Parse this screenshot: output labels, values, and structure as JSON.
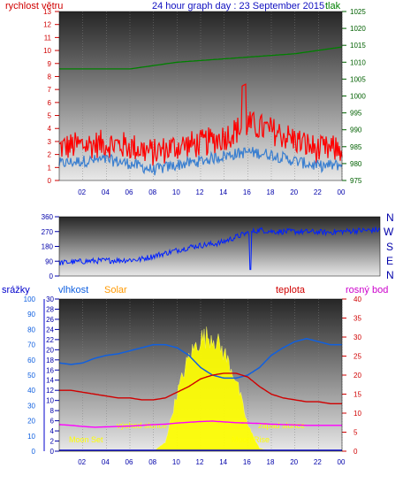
{
  "chart_data": [
    {
      "type": "line",
      "title": "24 hour graph day : 23 September 2015",
      "left_axis_label": "rychlost větru",
      "right_axis_label": "tlak",
      "x_tick_labels": [
        "02",
        "04",
        "06",
        "08",
        "10",
        "12",
        "14",
        "16",
        "18",
        "20",
        "22",
        "00"
      ],
      "left_ticks": [
        0,
        1,
        2,
        3,
        4,
        5,
        6,
        7,
        8,
        9,
        10,
        11,
        12,
        13
      ],
      "right_ticks": [
        975,
        980,
        985,
        990,
        995,
        1000,
        1005,
        1010,
        1015,
        1020,
        1025
      ],
      "ylim_left": [
        0,
        13
      ],
      "ylim_right": [
        975,
        1025
      ],
      "x": [
        0,
        2,
        4,
        6,
        8,
        10,
        12,
        14,
        16,
        18,
        20,
        22,
        24
      ],
      "series": [
        {
          "values_pressure": [
            1008,
            1008,
            1008,
            1008,
            1009,
            1010,
            1010.5,
            1011,
            1011.5,
            1012,
            1012.5,
            1013.5,
            1014.5
          ]
        },
        {
          "values_gust": [
            2.2,
            2.4,
            2.5,
            2.3,
            1.8,
            2.3,
            2.5,
            3.0,
            4.0,
            3.5,
            2.8,
            2.0,
            2.1
          ]
        },
        {
          "values_avg": [
            1.3,
            1.5,
            1.6,
            1.3,
            0.8,
            1.2,
            1.5,
            1.9,
            2.2,
            2.0,
            1.5,
            1.1,
            1.2
          ]
        }
      ]
    },
    {
      "type": "line",
      "left_ticks": [
        0,
        90,
        180,
        270,
        360
      ],
      "compass": [
        "N",
        "W",
        "S",
        "E",
        "N"
      ],
      "ylim": [
        0,
        360
      ],
      "x": [
        0,
        2,
        4,
        6,
        8,
        10,
        12,
        14,
        15,
        16,
        18,
        20,
        22,
        24
      ],
      "series": [
        {
          "values": [
            80,
            90,
            95,
            100,
            140,
            180,
            200,
            260,
            280,
            270,
            270,
            265,
            275,
            280
          ]
        }
      ]
    },
    {
      "type": "area",
      "legend": [
        "srážky",
        "vlhkost",
        "Solar",
        "teplota",
        "rosný bod"
      ],
      "left_ticks": [
        0,
        10,
        20,
        30,
        40,
        50,
        60,
        70,
        80,
        90,
        100
      ],
      "left2_ticks": [
        0,
        2,
        4,
        6,
        8,
        10,
        12,
        14,
        16,
        18,
        20,
        22,
        24,
        26,
        28,
        30
      ],
      "right_ticks": [
        0,
        5,
        10,
        15,
        20,
        25,
        30,
        35,
        40
      ],
      "ylim_humidity": [
        0,
        100
      ],
      "ylim_temp": [
        0,
        40
      ],
      "x_tick_labels": [
        "02",
        "04",
        "06",
        "08",
        "10",
        "12",
        "14",
        "16",
        "18",
        "20",
        "22",
        "00"
      ],
      "annotations": {
        "moon_set": "Moon Set",
        "sunrise": "východ slunce",
        "moon_rise": "Moon Rise",
        "sunset": "západ slunce"
      },
      "x": [
        0,
        1,
        2,
        3,
        4,
        5,
        6,
        7,
        8,
        9,
        10,
        11,
        12,
        13,
        14,
        15,
        16,
        17,
        18,
        19,
        20,
        21,
        22,
        23,
        24
      ],
      "humidity": [
        58,
        57,
        58,
        61,
        63,
        64,
        66,
        68,
        70,
        70,
        68,
        63,
        55,
        50,
        48,
        48,
        50,
        55,
        63,
        68,
        72,
        74,
        72,
        70,
        70
      ],
      "temperature": [
        16,
        16,
        15.5,
        15,
        14.5,
        14,
        14,
        13.5,
        13.5,
        14,
        15.5,
        17,
        19,
        20,
        20.5,
        20.5,
        19.5,
        17,
        15,
        14,
        13.5,
        13,
        13,
        12.5,
        12.5
      ],
      "dew_point": [
        7,
        6.8,
        6.5,
        6.3,
        6.4,
        6.5,
        6.6,
        6.8,
        7,
        7.1,
        7.4,
        7.6,
        7.8,
        7.9,
        7.7,
        7.5,
        7.4,
        7.3,
        7.1,
        7.0,
        6.9,
        6.8,
        6.8,
        6.8,
        6.8
      ],
      "solar": [
        0,
        0,
        0,
        0,
        0,
        0,
        0,
        0,
        0,
        6,
        40,
        65,
        78,
        80,
        68,
        50,
        18,
        2,
        0,
        0,
        0,
        0,
        0,
        0,
        0
      ],
      "rain": [
        0,
        0,
        0,
        0,
        0,
        0,
        0,
        0,
        0,
        0,
        0,
        0,
        0,
        0,
        0,
        0,
        0,
        0,
        0,
        0,
        0,
        0,
        0,
        0,
        0
      ]
    }
  ],
  "colors": {
    "wind_gust": "#ff0000",
    "wind_avg": "#3a7fd0",
    "pressure": "#008000",
    "direction": "#0020ff",
    "humidity": "#1060e0",
    "temperature": "#d00000",
    "dew_point": "#ff00ff",
    "solar": "#ffff00",
    "rain": "#0000cc",
    "title": "#1010c0"
  }
}
